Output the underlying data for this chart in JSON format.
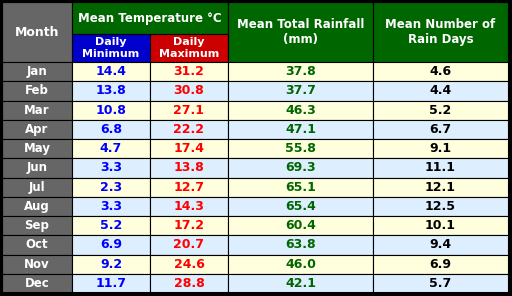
{
  "months": [
    "Jan",
    "Feb",
    "Mar",
    "Apr",
    "May",
    "Jun",
    "Jul",
    "Aug",
    "Sep",
    "Oct",
    "Nov",
    "Dec"
  ],
  "daily_min": [
    14.4,
    13.8,
    10.8,
    6.8,
    4.7,
    3.3,
    2.3,
    3.3,
    5.2,
    6.9,
    9.2,
    11.7
  ],
  "daily_max": [
    31.2,
    30.8,
    27.1,
    22.2,
    17.4,
    13.8,
    12.7,
    14.3,
    17.2,
    20.7,
    24.6,
    28.8
  ],
  "rainfall": [
    37.8,
    37.7,
    46.3,
    47.1,
    55.8,
    69.3,
    65.1,
    65.4,
    60.4,
    63.8,
    46.0,
    42.1
  ],
  "rain_days": [
    4.6,
    4.4,
    5.2,
    6.7,
    9.1,
    11.1,
    12.1,
    12.5,
    10.1,
    9.4,
    6.9,
    5.7
  ],
  "header_bg": "#006600",
  "header_text": "#ffffff",
  "subheader_min_bg": "#0000cc",
  "subheader_max_bg": "#cc0000",
  "subheader_text": "#ffffff",
  "month_bg": "#666666",
  "month_text": "#ffffff",
  "row_bg_odd": "#ffffdd",
  "row_bg_even": "#ddeeff",
  "min_text_color": "#0000ff",
  "max_text_color": "#ff0000",
  "rainfall_text_color": "#006600",
  "raindays_text_color": "#000000",
  "border_color": "#000000",
  "col1_header": "Mean Temperature °C",
  "col2_header": "Mean Total Rainfall\n(mm)",
  "col3_header": "Mean Number of\nRain Days",
  "sub1_header": "Daily\nMinimum",
  "sub2_header": "Daily\nMaximum"
}
